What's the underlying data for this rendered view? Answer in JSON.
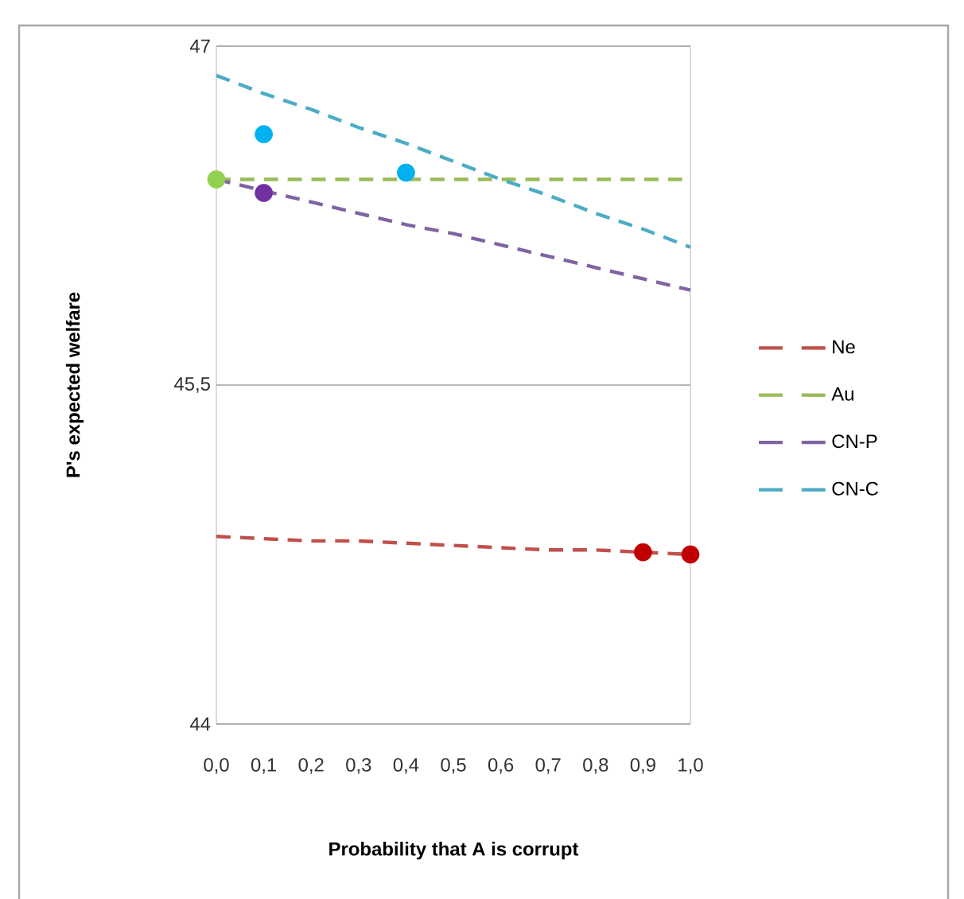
{
  "chart_data": {
    "type": "line",
    "xlabel": "Probability that A is corrupt",
    "ylabel": "P's expected welfare",
    "categories": [
      "0,0",
      "0,1",
      "0,2",
      "0,3",
      "0,4",
      "0,5",
      "0,6",
      "0,7",
      "0,8",
      "0,9",
      "1,0"
    ],
    "ylim": [
      44,
      47
    ],
    "yticks": [
      44,
      {
        "value": 45.5,
        "label": "45,5"
      },
      47
    ],
    "grid": "y",
    "legend": "right",
    "line_style": "dashed",
    "marker": "none",
    "series": [
      {
        "name": "Ne",
        "color": "#c0504d",
        "values": [
          44.83,
          44.82,
          44.81,
          44.81,
          44.8,
          44.79,
          44.78,
          44.77,
          44.77,
          44.76,
          44.75
        ]
      },
      {
        "name": "Au",
        "color": "#9bbb59",
        "values": [
          46.41,
          46.41,
          46.41,
          46.41,
          46.41,
          46.41,
          46.41,
          46.41,
          46.41,
          46.41,
          46.41
        ]
      },
      {
        "name": "CN-P",
        "color": "#8064a2",
        "values": [
          46.41,
          46.36,
          46.31,
          46.26,
          46.21,
          46.17,
          46.12,
          46.07,
          46.02,
          45.97,
          45.92
        ]
      },
      {
        "name": "CN-C",
        "color": "#4bacc6",
        "values": [
          46.87,
          46.79,
          46.72,
          46.64,
          46.57,
          46.49,
          46.41,
          46.34,
          46.26,
          46.19,
          46.11
        ]
      },
      {
        "type": "scatter",
        "marker": "circle",
        "color": "#92d050",
        "x": [
          "0,0"
        ],
        "values": [
          46.41
        ]
      },
      {
        "type": "scatter",
        "marker": "circle",
        "color": "#00b0f0",
        "x": [
          "0,1",
          "0,4"
        ],
        "values": [
          46.61,
          46.44
        ]
      },
      {
        "type": "scatter",
        "marker": "circle",
        "color": "#7030a0",
        "x": [
          "0,1"
        ],
        "values": [
          46.35
        ]
      },
      {
        "type": "scatter",
        "marker": "circle",
        "color": "#c00000",
        "x": [
          "0,9",
          "1,0"
        ],
        "values": [
          44.76,
          44.75
        ]
      }
    ]
  }
}
